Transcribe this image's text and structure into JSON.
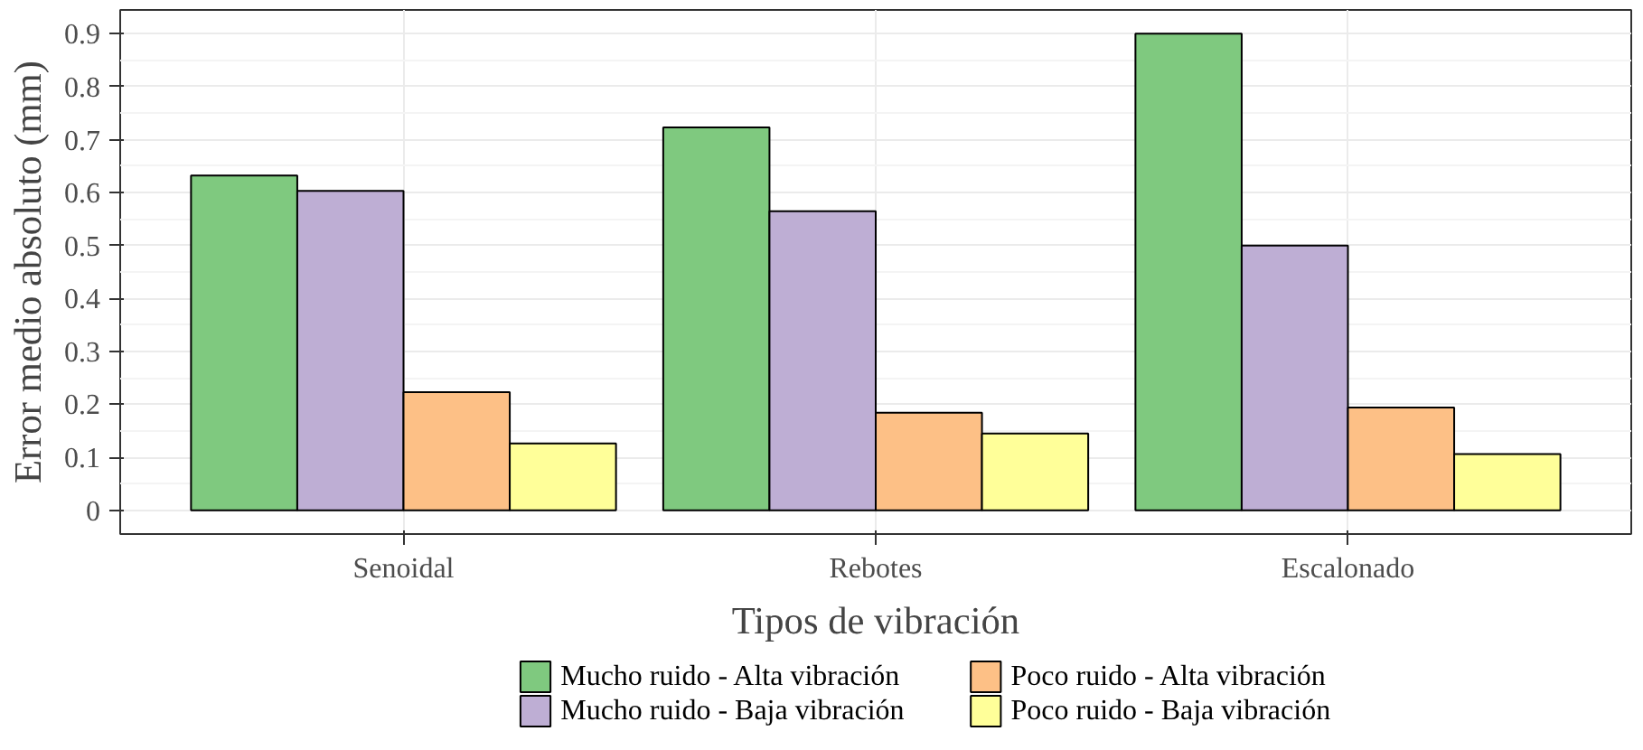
{
  "chart_data": {
    "type": "bar",
    "xlabel": "Tipos de vibración",
    "ylabel": "Error medio absoluto (mm)",
    "categories": [
      "Senoidal",
      "Rebotes",
      "Escalonado"
    ],
    "series": [
      {
        "name": "Mucho ruido - Alta vibración",
        "color": "#7fc97f",
        "values": [
          0.632,
          0.723,
          0.9
        ]
      },
      {
        "name": "Mucho ruido - Baja vibración",
        "color": "#beaed4",
        "values": [
          0.603,
          0.565,
          0.5
        ]
      },
      {
        "name": "Poco ruido - Alta vibración",
        "color": "#fdc086",
        "values": [
          0.223,
          0.184,
          0.194
        ]
      },
      {
        "name": "Poco ruido - Baja vibración",
        "color": "#ffff99",
        "values": [
          0.126,
          0.145,
          0.106
        ]
      }
    ],
    "ylim": [
      -0.045,
      0.945
    ],
    "yticks": [
      0,
      0.1,
      0.2,
      0.3,
      0.4,
      0.5,
      0.6,
      0.7,
      0.8,
      0.9
    ],
    "grid": true,
    "legend": "bottom"
  }
}
